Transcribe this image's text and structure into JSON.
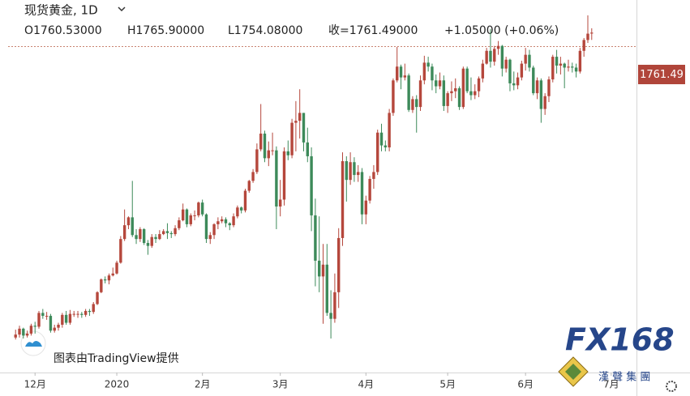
{
  "chart_data": {
    "type": "candlestick",
    "title": "现货黄金, 1D",
    "legend_items": [
      "O1760.53000",
      "H1765.90000",
      "L1754.08000",
      "收=1761.49000",
      "+1.05000 (+0.06%)"
    ],
    "price_label": "1761.49",
    "attribution": "图表由TradingView提供",
    "logo": "FX168",
    "logo_sub": "漢 聲 集 團",
    "up_color": "#b5473c",
    "down_color": "#3d8a5a",
    "categories": [
      null,
      null,
      null,
      null,
      null,
      null,
      null,
      null,
      null,
      null,
      null,
      null,
      null,
      null,
      null,
      null,
      null,
      null,
      null,
      null,
      null,
      null,
      null,
      null,
      null,
      null,
      null,
      null,
      null,
      null,
      null,
      null,
      null,
      null,
      null,
      null,
      null,
      null,
      null,
      null,
      null,
      null,
      null,
      null,
      null,
      null,
      null,
      null,
      null,
      null,
      null,
      null,
      null,
      null,
      null,
      null,
      null,
      null,
      null,
      null,
      null,
      null,
      null,
      null,
      null,
      null,
      null,
      null,
      null,
      null,
      null,
      null,
      null,
      null,
      null,
      null,
      null,
      null,
      null,
      null,
      null,
      null,
      null,
      null,
      null,
      null,
      null,
      null,
      null,
      null,
      null,
      null,
      null,
      null,
      null,
      null,
      null,
      null,
      null,
      null,
      null,
      null,
      null,
      null,
      null,
      null,
      null,
      null,
      null,
      null,
      null,
      null,
      null,
      null,
      null,
      null,
      null,
      null,
      null,
      null,
      null,
      null,
      null,
      null,
      null,
      null,
      null,
      null,
      null,
      null,
      null,
      null,
      null,
      null,
      null,
      null,
      null,
      null,
      null,
      null,
      null,
      null,
      null,
      null,
      null,
      null,
      null,
      null,
      null
    ],
    "open": [
      1452,
      1455,
      1461,
      1454,
      1456,
      1464,
      1463,
      1477,
      1474,
      1474,
      1459,
      1462,
      1465,
      1475,
      1467,
      1476,
      1476,
      1476,
      1475,
      1479,
      1478,
      1486,
      1498,
      1511,
      1510,
      1515,
      1517,
      1528,
      1552,
      1566,
      1574,
      1556,
      1552,
      1562,
      1548,
      1545,
      1554,
      1552,
      1557,
      1560,
      1558,
      1557,
      1563,
      1571,
      1582,
      1567,
      1576,
      1576,
      1589,
      1577,
      1552,
      1556,
      1567,
      1570,
      1572,
      1568,
      1566,
      1575,
      1584,
      1581,
      1601,
      1611,
      1620,
      1643,
      1659,
      1634,
      1642,
      1642,
      1585,
      1592,
      1641,
      1637,
      1670,
      1672,
      1680,
      1650,
      1636,
      1576,
      1530,
      1514,
      1526,
      1477,
      1471,
      1498,
      1553,
      1631,
      1612,
      1630,
      1617,
      1620,
      1577,
      1591,
      1613,
      1620,
      1660,
      1647,
      1645,
      1680,
      1713,
      1727,
      1716,
      1718,
      1683,
      1694,
      1686,
      1713,
      1731,
      1727,
      1713,
      1707,
      1713,
      1687,
      1700,
      1702,
      1705,
      1686,
      1725,
      1702,
      1698,
      1702,
      1715,
      1730,
      1743,
      1732,
      1745,
      1748,
      1725,
      1734,
      1710,
      1708,
      1716,
      1730,
      1739,
      1726,
      1700,
      1713,
      1684,
      1697,
      1714,
      1737,
      1728,
      1730,
      1726,
      1727,
      1726,
      1722,
      1743,
      1754,
      1760.53
    ],
    "high": [
      1460,
      1464,
      1462,
      1459,
      1466,
      1468,
      1479,
      1481,
      1478,
      1476,
      1465,
      1467,
      1477,
      1479,
      1480,
      1479,
      1479,
      1478,
      1481,
      1481,
      1488,
      1499,
      1512,
      1514,
      1517,
      1523,
      1530,
      1555,
      1582,
      1575,
      1611,
      1562,
      1564,
      1563,
      1551,
      1557,
      1557,
      1561,
      1562,
      1568,
      1560,
      1566,
      1574,
      1588,
      1583,
      1578,
      1581,
      1590,
      1592,
      1578,
      1559,
      1568,
      1574,
      1575,
      1574,
      1569,
      1578,
      1586,
      1585,
      1603,
      1612,
      1623,
      1649,
      1689,
      1662,
      1651,
      1660,
      1646,
      1612,
      1645,
      1652,
      1674,
      1692,
      1704,
      1680,
      1665,
      1645,
      1593,
      1575,
      1547,
      1547,
      1500,
      1517,
      1563,
      1640,
      1636,
      1640,
      1635,
      1627,
      1624,
      1596,
      1616,
      1627,
      1663,
      1669,
      1652,
      1684,
      1715,
      1747,
      1729,
      1730,
      1720,
      1697,
      1698,
      1718,
      1738,
      1737,
      1730,
      1719,
      1721,
      1718,
      1702,
      1712,
      1715,
      1707,
      1727,
      1727,
      1716,
      1709,
      1717,
      1734,
      1746,
      1765,
      1748,
      1753,
      1749,
      1737,
      1735,
      1722,
      1721,
      1733,
      1746,
      1744,
      1728,
      1716,
      1715,
      1700,
      1717,
      1739,
      1744,
      1737,
      1731,
      1734,
      1731,
      1730,
      1746,
      1756,
      1779,
      1765.9
    ],
    "low": [
      1450,
      1452,
      1451,
      1452,
      1454,
      1456,
      1461,
      1471,
      1470,
      1457,
      1457,
      1459,
      1462,
      1465,
      1465,
      1473,
      1472,
      1472,
      1473,
      1474,
      1476,
      1485,
      1497,
      1507,
      1506,
      1514,
      1516,
      1527,
      1550,
      1562,
      1554,
      1547,
      1549,
      1546,
      1536,
      1543,
      1548,
      1551,
      1556,
      1552,
      1553,
      1555,
      1561,
      1570,
      1564,
      1565,
      1571,
      1574,
      1575,
      1548,
      1547,
      1552,
      1562,
      1568,
      1564,
      1561,
      1564,
      1573,
      1578,
      1579,
      1599,
      1609,
      1618,
      1641,
      1630,
      1626,
      1637,
      1562,
      1575,
      1586,
      1632,
      1634,
      1641,
      1654,
      1641,
      1630,
      1560,
      1504,
      1498,
      1466,
      1474,
      1451,
      1467,
      1482,
      1545,
      1590,
      1607,
      1610,
      1610,
      1567,
      1567,
      1588,
      1603,
      1617,
      1641,
      1641,
      1641,
      1677,
      1711,
      1704,
      1713,
      1681,
      1680,
      1660,
      1682,
      1709,
      1722,
      1703,
      1700,
      1704,
      1682,
      1680,
      1692,
      1695,
      1683,
      1684,
      1700,
      1693,
      1694,
      1696,
      1711,
      1729,
      1726,
      1728,
      1739,
      1717,
      1721,
      1702,
      1703,
      1704,
      1713,
      1723,
      1722,
      1698,
      1694,
      1670,
      1678,
      1691,
      1711,
      1720,
      1719,
      1705,
      1722,
      1721,
      1716,
      1720,
      1737,
      1751,
      1754.08
    ],
    "close": [
      1455,
      1461,
      1454,
      1456,
      1464,
      1463,
      1477,
      1474,
      1474,
      1459,
      1462,
      1465,
      1475,
      1467,
      1476,
      1476,
      1476,
      1475,
      1479,
      1478,
      1486,
      1498,
      1511,
      1510,
      1515,
      1517,
      1528,
      1552,
      1566,
      1574,
      1556,
      1552,
      1562,
      1548,
      1545,
      1554,
      1552,
      1557,
      1560,
      1558,
      1557,
      1563,
      1571,
      1582,
      1567,
      1576,
      1576,
      1589,
      1577,
      1552,
      1556,
      1567,
      1570,
      1572,
      1568,
      1566,
      1575,
      1584,
      1581,
      1601,
      1611,
      1620,
      1643,
      1659,
      1634,
      1642,
      1642,
      1585,
      1592,
      1641,
      1637,
      1670,
      1672,
      1680,
      1650,
      1636,
      1576,
      1530,
      1514,
      1526,
      1477,
      1471,
      1498,
      1553,
      1631,
      1612,
      1630,
      1617,
      1620,
      1577,
      1591,
      1613,
      1620,
      1660,
      1647,
      1645,
      1680,
      1713,
      1727,
      1716,
      1718,
      1683,
      1694,
      1686,
      1713,
      1731,
      1727,
      1713,
      1707,
      1713,
      1687,
      1700,
      1702,
      1705,
      1686,
      1725,
      1702,
      1698,
      1702,
      1715,
      1730,
      1743,
      1732,
      1745,
      1748,
      1725,
      1734,
      1710,
      1708,
      1716,
      1730,
      1739,
      1726,
      1700,
      1713,
      1684,
      1697,
      1714,
      1737,
      1728,
      1730,
      1726,
      1727,
      1726,
      1722,
      1743,
      1754,
      1760.44,
      1761.49
    ],
    "xlim": [
      -4,
      159.5
    ],
    "ylim": [
      1416.5,
      1794.6
    ],
    "xticks": [
      {
        "value": 5,
        "label": "12月"
      },
      {
        "value": 26,
        "label": "2020"
      },
      {
        "value": 48,
        "label": "2月"
      },
      {
        "value": 68,
        "label": "3月"
      },
      {
        "value": 90,
        "label": "4月"
      },
      {
        "value": 111,
        "label": "5月"
      },
      {
        "value": 131,
        "label": "6月"
      },
      {
        "value": 153,
        "label": "7月"
      }
    ]
  }
}
